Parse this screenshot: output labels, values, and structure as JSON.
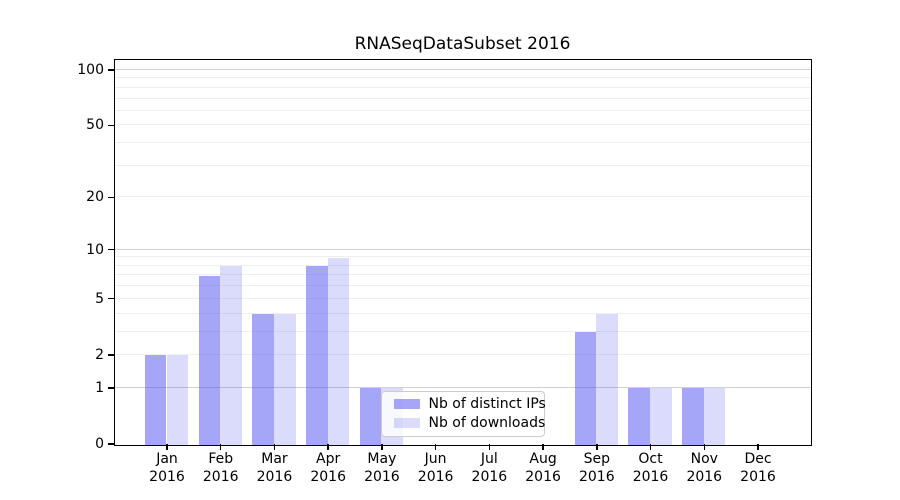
{
  "chart_data": {
    "type": "bar",
    "title": "RNASeqDataSubset 2016",
    "categories": [
      "Jan 2016",
      "Feb 2016",
      "Mar 2016",
      "Apr 2016",
      "May 2016",
      "Jun 2016",
      "Jul 2016",
      "Aug 2016",
      "Sep 2016",
      "Oct 2016",
      "Nov 2016",
      "Dec 2016"
    ],
    "x_tick_months": [
      "Jan",
      "Feb",
      "Mar",
      "Apr",
      "May",
      "Jun",
      "Jul",
      "Aug",
      "Sep",
      "Oct",
      "Nov",
      "Dec"
    ],
    "x_tick_year": "2016",
    "series": [
      {
        "name": "Nb of distinct IPs",
        "color": "rgba(77,77,239,0.5)",
        "values": [
          2,
          7,
          4,
          8,
          1,
          0,
          0,
          0,
          3,
          1,
          1,
          0
        ]
      },
      {
        "name": "Nb of downloads",
        "color": "rgba(77,77,239,0.2)",
        "values": [
          2,
          8,
          4,
          9,
          1,
          0,
          0,
          0,
          4,
          1,
          1,
          0
        ]
      }
    ],
    "yscale": "log1p",
    "ylim": [
      0,
      113
    ],
    "y_tick_values": [
      0,
      1,
      2,
      5,
      10,
      20,
      50,
      100
    ],
    "y_tick_labels": [
      "0",
      "1",
      "2",
      "5",
      "10",
      "20",
      "50",
      "100"
    ],
    "y_major_gridlines": [
      1,
      10,
      100
    ],
    "y_minor_gridlines": [
      2,
      3,
      4,
      5,
      6,
      7,
      8,
      9,
      20,
      30,
      40,
      50,
      60,
      70,
      80,
      90
    ],
    "grid": true,
    "legend_position": "lower center",
    "colors": {
      "bar_base": "#4d4def",
      "major_grid": "#d0d0d0",
      "minor_grid": "#efefef",
      "axis": "#000000",
      "text": "#000000",
      "legend_border": "#cccccc"
    }
  }
}
